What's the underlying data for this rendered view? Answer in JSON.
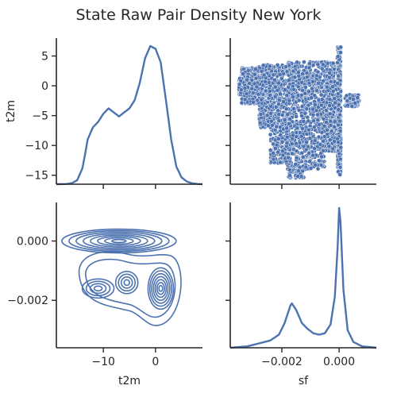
{
  "chart_data": {
    "type": "pairplot",
    "title": "State Raw Pair Density New York",
    "variables": [
      "t2m",
      "sf"
    ],
    "color": "#4c72b0",
    "t2m_axis": {
      "range": [
        -19,
        9
      ],
      "ticks": [
        -10,
        0
      ],
      "tick_labels": [
        "−10",
        "0"
      ]
    },
    "t2m_y_axis": {
      "range": [
        -16.5,
        8
      ],
      "ticks": [
        -15,
        -10,
        -5,
        0,
        5
      ],
      "tick_labels": [
        "−15",
        "−10",
        "−5",
        "0",
        "5"
      ]
    },
    "sf_axis": {
      "range": [
        -0.0038,
        0.0013
      ],
      "ticks": [
        -0.002,
        0.0
      ],
      "tick_labels": [
        "−0.002",
        "0.000"
      ]
    },
    "sf_y_axis": {
      "range": [
        -0.0036,
        0.0013
      ],
      "ticks": [
        -0.002,
        0.0
      ],
      "tick_labels": [
        "−0.002",
        "0.000"
      ]
    },
    "panels": [
      {
        "position": "top-left",
        "type": "kde",
        "variable": "t2m",
        "x": [
          -19,
          -17,
          -16,
          -15,
          -14,
          -13.5,
          -13,
          -12,
          -11,
          -10,
          -9,
          -8,
          -7,
          -6,
          -5,
          -4,
          -3,
          -2,
          -1,
          0,
          1,
          2,
          3,
          4,
          5,
          6,
          7,
          8,
          9
        ],
        "density": [
          0.0,
          0.002,
          0.008,
          0.03,
          0.12,
          0.22,
          0.33,
          0.42,
          0.46,
          0.52,
          0.56,
          0.53,
          0.5,
          0.53,
          0.56,
          0.62,
          0.75,
          0.93,
          1.02,
          1.0,
          0.9,
          0.62,
          0.33,
          0.13,
          0.05,
          0.02,
          0.007,
          0.002,
          0.0
        ]
      },
      {
        "position": "top-right",
        "type": "scatter",
        "x_variable": "sf",
        "y_variable": "t2m",
        "note": "dense point cloud; sf spans about -0.0035 to 0.0007, t2m spans about -15.5 to 6.5; dense vertical streak at sf = 0"
      },
      {
        "position": "bottom-left",
        "type": "kde2d",
        "x_variable": "t2m",
        "y_variable": "sf",
        "clusters": [
          {
            "t2m": -7,
            "sf": 0.0,
            "note": "wide horizontal band, t2m -14 to 4"
          },
          {
            "t2m": 1,
            "sf": -0.0016,
            "note": "strongest lower peak"
          },
          {
            "t2m": -5.5,
            "sf": -0.0014
          },
          {
            "t2m": -11,
            "sf": -0.0016
          }
        ]
      },
      {
        "position": "bottom-right",
        "type": "kde",
        "variable": "sf",
        "x": [
          -0.0038,
          -0.0032,
          -0.0028,
          -0.0024,
          -0.0021,
          -0.0019,
          -0.0017,
          -0.00165,
          -0.0015,
          -0.0013,
          -0.0011,
          -0.0009,
          -0.0007,
          -0.0005,
          -0.0003,
          -0.00015,
          -5e-05,
          0.0,
          5e-05,
          0.00015,
          0.0003,
          0.0005,
          0.0008,
          0.0013
        ],
        "density": [
          0.0,
          0.01,
          0.03,
          0.05,
          0.09,
          0.17,
          0.29,
          0.305,
          0.26,
          0.17,
          0.13,
          0.1,
          0.09,
          0.1,
          0.16,
          0.35,
          0.7,
          0.96,
          0.86,
          0.4,
          0.12,
          0.04,
          0.01,
          0.0
        ]
      }
    ]
  }
}
